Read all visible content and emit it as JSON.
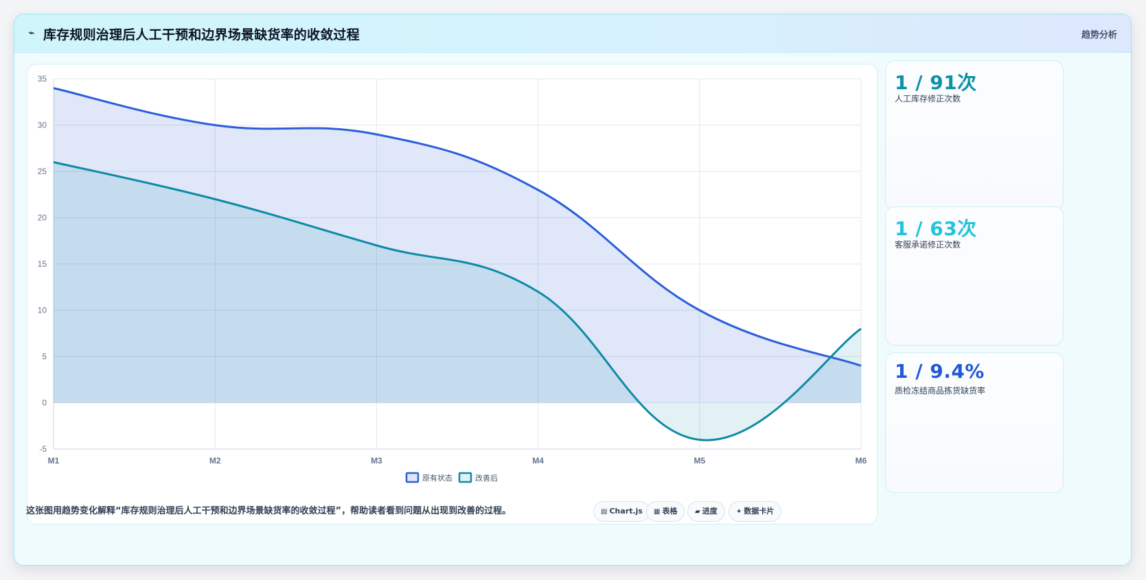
{
  "header": {
    "icon": "trend-icon",
    "title": "库存规则治理后人工干预和边界场景缺货率的收敛过程",
    "tag": "趋势分析"
  },
  "stats": [
    {
      "value": "1 / 91次",
      "label": "人工库存修正次数",
      "color": "#0e90a8"
    },
    {
      "value": "1 / 63次",
      "label": "客服承诺修正次数",
      "color": "#22c3dc"
    },
    {
      "value": "1 / 9.4%",
      "label": "质检冻结商品拣货缺货率",
      "color": "#2258d8"
    }
  ],
  "footer": {
    "description": "这张图用趋势变化解释“库存规则治理后人工干预和边界场景缺货率的收敛过程”，帮助读者看到问题从出现到改善的过程。",
    "chips": [
      {
        "icon": "chart-icon",
        "label": "Chart.js"
      },
      {
        "icon": "table-icon",
        "label": "表格"
      },
      {
        "icon": "progress-icon",
        "label": "进度"
      },
      {
        "icon": "card-icon",
        "label": "数据卡片"
      }
    ]
  },
  "chart_data": {
    "type": "area",
    "categories": [
      "M1",
      "M2",
      "M3",
      "M4",
      "M5",
      "M6"
    ],
    "series": [
      {
        "name": "原有状态",
        "values": [
          34,
          30,
          29,
          23,
          10,
          4
        ],
        "color": "#2b5fd9",
        "fill": "rgba(43, 95, 217, 0.15)"
      },
      {
        "name": "改善后",
        "values": [
          26,
          22,
          17,
          12,
          -4,
          8
        ],
        "color": "#0e8aa5",
        "fill": "rgba(14, 138, 165, 0.12)"
      }
    ],
    "ylim": [
      -5,
      35
    ],
    "yticks": [
      35,
      30,
      25,
      20,
      15,
      10,
      5,
      0,
      -5
    ],
    "grid": true,
    "legend": "bottom-center"
  }
}
